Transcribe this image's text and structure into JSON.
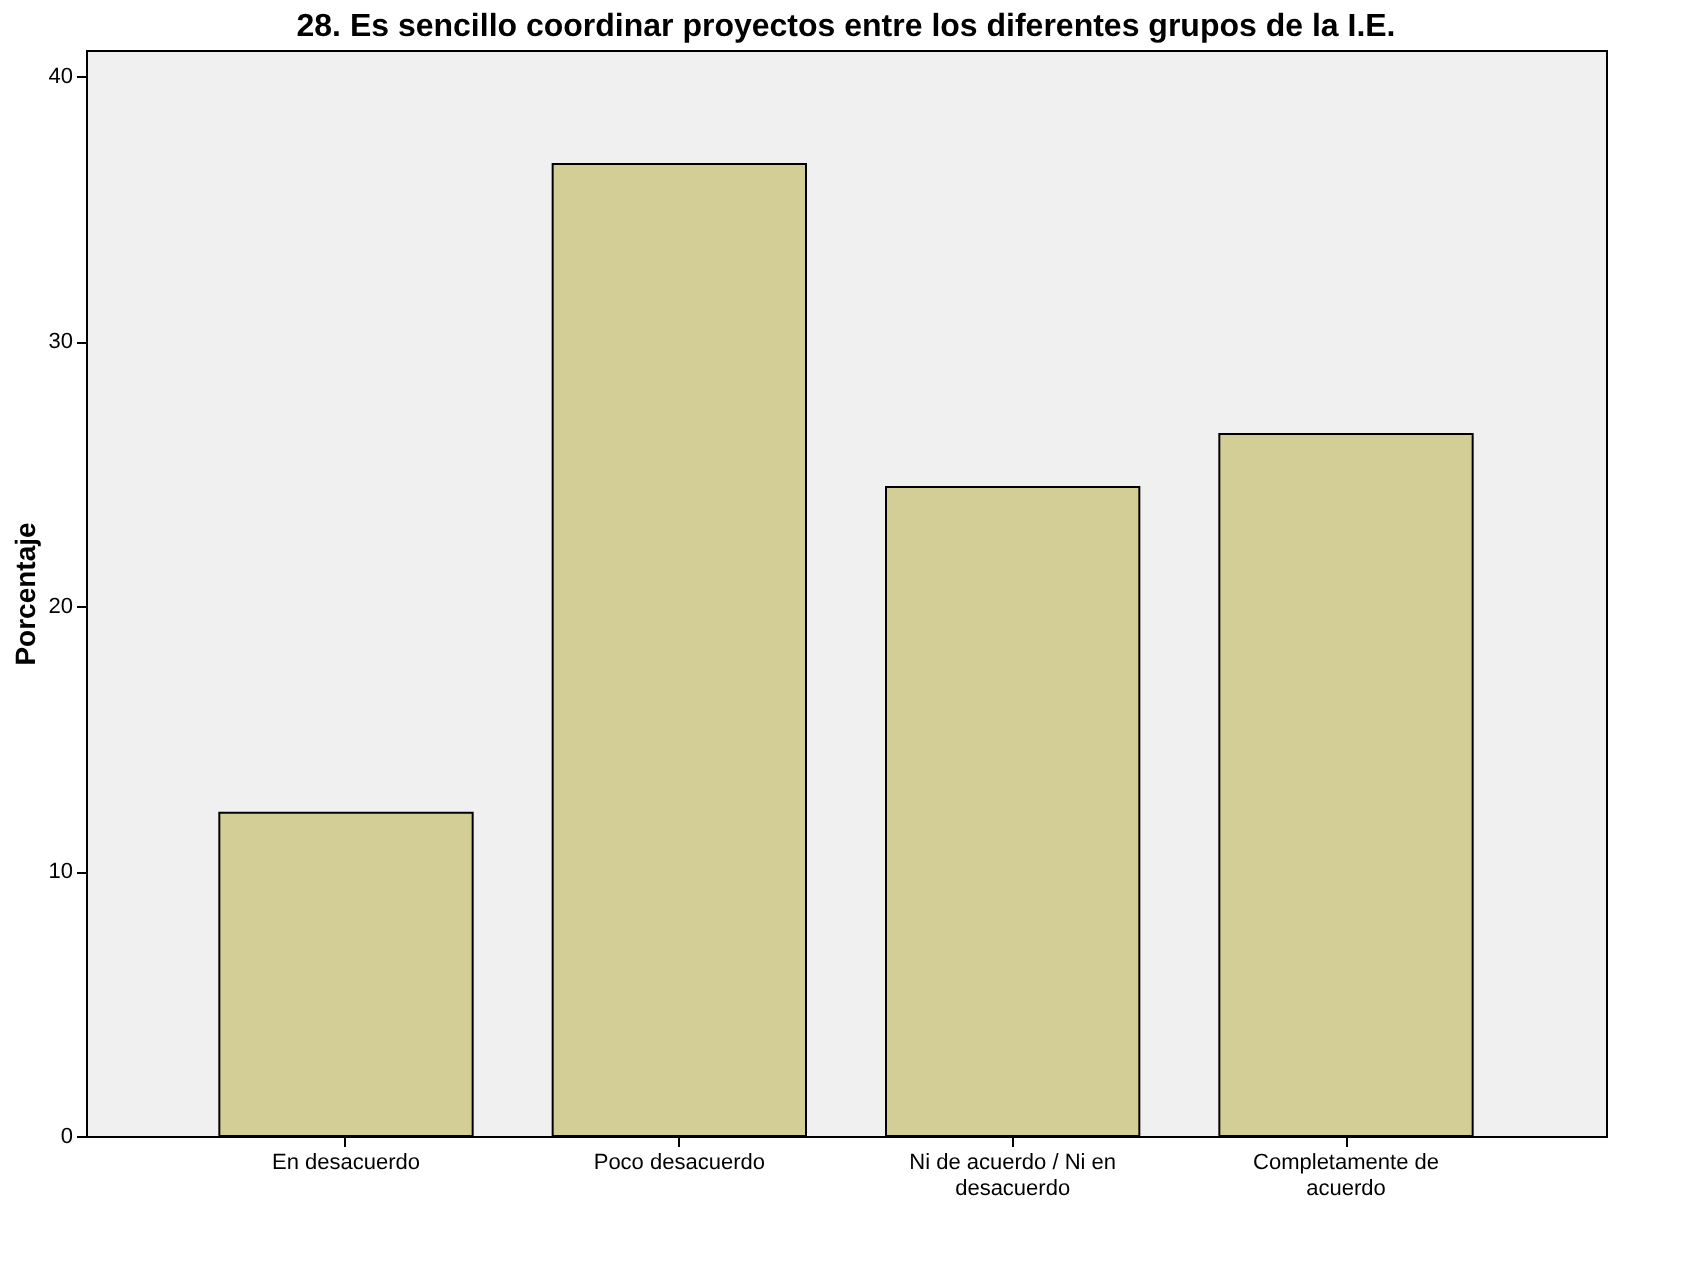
{
  "chart_data": {
    "type": "bar",
    "title": "28. Es sencillo coordinar proyectos entre los diferentes grupos de la I.E.",
    "ylabel": "Porcentaje",
    "categories": [
      "En desacuerdo",
      "Poco desacuerdo",
      "Ni de acuerdo / Ni en desacuerdo",
      "Completamente de acuerdo"
    ],
    "values": [
      12.2,
      36.7,
      24.5,
      26.5
    ],
    "color": "#d3ce96",
    "ylim": [
      0,
      41
    ],
    "yticks": [
      0,
      10,
      20,
      30,
      40
    ],
    "grid": false
  }
}
